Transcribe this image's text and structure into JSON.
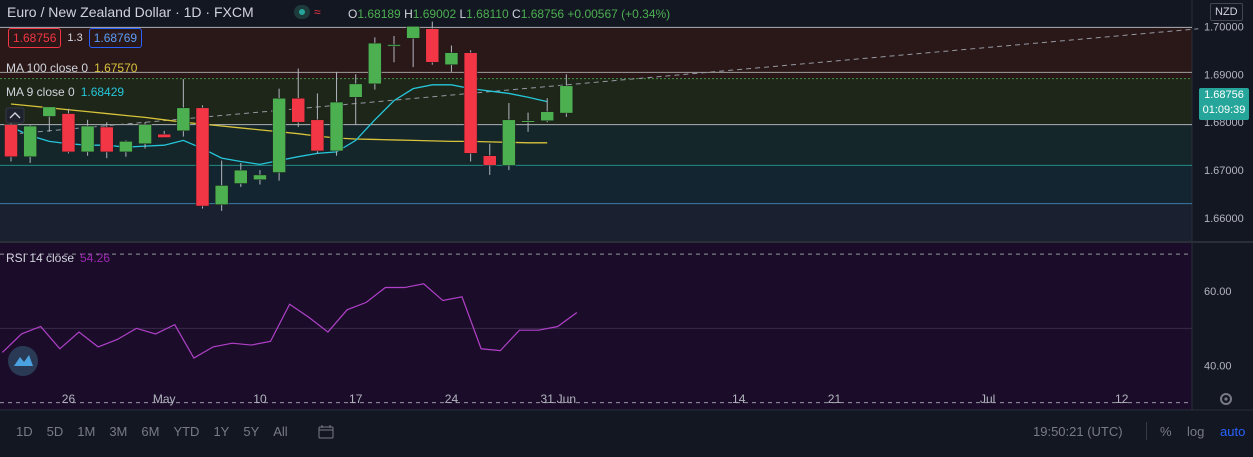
{
  "header": {
    "symbol": "Euro / New Zealand Dollar · 1D · FXCM",
    "ohlc": {
      "o_label": "O",
      "o": "1.68189",
      "h_label": "H",
      "h": "1.69002",
      "l_label": "L",
      "l": "1.68110",
      "c_label": "C",
      "c": "1.68756",
      "change": "+0.00567 (+0.34%)"
    },
    "sell_price": "1.68756",
    "spread": "1.3",
    "buy_price": "1.68769",
    "ma100_label": "MA 100 close 0",
    "ma100_value": "1.67570",
    "ma9_label": "MA 9 close 0",
    "ma9_value": "1.68429",
    "rsi_label": "RSI 14 close",
    "rsi_value": "54.26"
  },
  "currency": "NZD",
  "last_price_tag": {
    "price": "1.68756",
    "countdown": "01:09:39"
  },
  "timeframes": [
    "1D",
    "5D",
    "1M",
    "3M",
    "6M",
    "YTD",
    "1Y",
    "5Y",
    "All"
  ],
  "clock": "19:50:21 (UTC)",
  "scale_buttons": [
    "%",
    "log",
    "auto"
  ],
  "colors": {
    "up": "#4caf50",
    "down": "#f23645",
    "ma9": "#26c6da",
    "ma100": "#d8c33a",
    "rsi": "#b040c8",
    "bg": "#131722"
  },
  "chart_data": [
    {
      "type": "candlestick",
      "title": "Euro / New Zealand Dollar · 1D · FXCM",
      "ylim": [
        1.655,
        1.7055
      ],
      "y_ticks": [
        1.66,
        1.67,
        1.68,
        1.69,
        1.7
      ],
      "x_ticks": [
        {
          "label": "26",
          "index": 3
        },
        {
          "label": "May",
          "index": 8
        },
        {
          "label": "10",
          "index": 13
        },
        {
          "label": "17",
          "index": 18
        },
        {
          "label": "24",
          "index": 23
        },
        {
          "label": "31",
          "index": 28
        },
        {
          "label": "Jun",
          "index": 29
        },
        {
          "label": "14",
          "index": 38
        },
        {
          "label": "21",
          "index": 43
        },
        {
          "label": "Jul",
          "index": 51
        },
        {
          "label": "12",
          "index": 58
        }
      ],
      "candles": [
        {
          "o": 1.6795,
          "h": 1.681,
          "l": 1.6718,
          "c": 1.6728
        },
        {
          "o": 1.6728,
          "h": 1.6795,
          "l": 1.6715,
          "c": 1.6792
        },
        {
          "o": 1.6812,
          "h": 1.683,
          "l": 1.678,
          "c": 1.6832
        },
        {
          "o": 1.6818,
          "h": 1.6828,
          "l": 1.6735,
          "c": 1.6738
        },
        {
          "o": 1.6738,
          "h": 1.6805,
          "l": 1.673,
          "c": 1.6792
        },
        {
          "o": 1.679,
          "h": 1.68,
          "l": 1.6725,
          "c": 1.6738
        },
        {
          "o": 1.6738,
          "h": 1.6762,
          "l": 1.6728,
          "c": 1.676
        },
        {
          "o": 1.6755,
          "h": 1.68,
          "l": 1.6745,
          "c": 1.6795
        },
        {
          "o": 1.6775,
          "h": 1.6782,
          "l": 1.6768,
          "c": 1.6768
        },
        {
          "o": 1.6782,
          "h": 1.689,
          "l": 1.677,
          "c": 1.683
        },
        {
          "o": 1.683,
          "h": 1.6835,
          "l": 1.662,
          "c": 1.6625
        },
        {
          "o": 1.6628,
          "h": 1.672,
          "l": 1.6615,
          "c": 1.6668
        },
        {
          "o": 1.6672,
          "h": 1.6715,
          "l": 1.6665,
          "c": 1.67
        },
        {
          "o": 1.668,
          "h": 1.67,
          "l": 1.667,
          "c": 1.669
        },
        {
          "o": 1.6695,
          "h": 1.687,
          "l": 1.6678,
          "c": 1.685
        },
        {
          "o": 1.685,
          "h": 1.6912,
          "l": 1.679,
          "c": 1.68
        },
        {
          "o": 1.6805,
          "h": 1.686,
          "l": 1.6735,
          "c": 1.674
        },
        {
          "o": 1.674,
          "h": 1.6905,
          "l": 1.673,
          "c": 1.6842
        },
        {
          "o": 1.6852,
          "h": 1.69,
          "l": 1.6795,
          "c": 1.688
        },
        {
          "o": 1.688,
          "h": 1.6977,
          "l": 1.6868,
          "c": 1.6965
        },
        {
          "o": 1.696,
          "h": 1.698,
          "l": 1.6925,
          "c": 1.6962
        },
        {
          "o": 1.6975,
          "h": 1.7,
          "l": 1.6915,
          "c": 1.7
        },
        {
          "o": 1.6995,
          "h": 1.701,
          "l": 1.692,
          "c": 1.6925
        },
        {
          "o": 1.692,
          "h": 1.696,
          "l": 1.6905,
          "c": 1.6945
        },
        {
          "o": 1.6945,
          "h": 1.695,
          "l": 1.6718,
          "c": 1.6735
        },
        {
          "o": 1.673,
          "h": 1.6755,
          "l": 1.669,
          "c": 1.671
        },
        {
          "o": 1.671,
          "h": 1.684,
          "l": 1.67,
          "c": 1.6805
        },
        {
          "o": 1.68,
          "h": 1.682,
          "l": 1.678,
          "c": 1.6803
        },
        {
          "o": 1.6803,
          "h": 1.685,
          "l": 1.68,
          "c": 1.6822
        },
        {
          "o": 1.6819,
          "h": 1.69,
          "l": 1.6811,
          "c": 1.6876
        }
      ],
      "ma9": [
        1.679,
        1.6772,
        1.676,
        1.6755,
        1.6752,
        1.6752,
        1.6748,
        1.675,
        1.6752,
        1.6762,
        1.6745,
        1.6725,
        1.6718,
        1.6712,
        1.672,
        1.6728,
        1.6735,
        1.6738,
        1.6762,
        1.6805,
        1.6845,
        1.687,
        1.6878,
        1.6878,
        1.687,
        1.6865,
        1.686,
        1.6852,
        1.6843
      ],
      "ma100": [
        1.6838,
        1.6834,
        1.683,
        1.6826,
        1.6822,
        1.6818,
        1.6814,
        1.681,
        1.6805,
        1.68,
        1.6796,
        1.6792,
        1.6788,
        1.6784,
        1.678,
        1.6776,
        1.6771,
        1.6767,
        1.6765,
        1.6764,
        1.6763,
        1.6762,
        1.6761,
        1.676,
        1.676,
        1.6759,
        1.6758,
        1.6757,
        1.6757
      ],
      "levels": [
        1.6998,
        1.6904,
        1.6891,
        1.6795,
        1.671,
        1.663
      ],
      "trendline": {
        "from": {
          "index": 0,
          "value": 1.6775
        },
        "to": {
          "index": 62,
          "value": 1.6995
        }
      }
    },
    {
      "type": "line",
      "title": "RSI 14 close",
      "ylim": [
        28,
        73
      ],
      "y_ticks": [
        40.0,
        60.0
      ],
      "bands": [
        70,
        30
      ],
      "values": [
        43.5,
        48.5,
        50.5,
        44.5,
        49,
        45,
        47,
        50,
        48.5,
        51,
        42,
        45,
        46,
        45.5,
        46.5,
        56.5,
        53,
        49,
        55,
        57,
        61,
        61,
        62,
        57.5,
        58.5,
        44.5,
        44,
        49.5,
        49.5,
        50.5,
        54.26
      ]
    }
  ]
}
